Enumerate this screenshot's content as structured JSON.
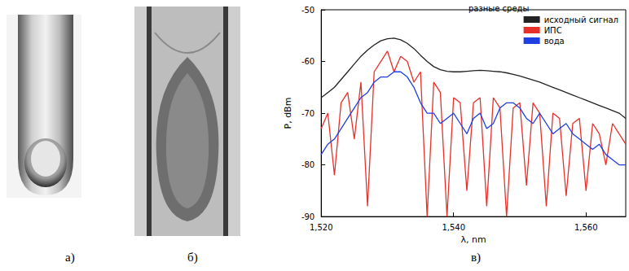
{
  "panel_labels": [
    "а)",
    "б)",
    "в)"
  ],
  "chart_data": {
    "type": "line",
    "title": "разные среды",
    "x_label": "λ, nm",
    "y_label": "P, dBm",
    "x": [
      1520,
      1521,
      1522,
      1523,
      1524,
      1525,
      1526,
      1527,
      1528,
      1529,
      1530,
      1531,
      1532,
      1533,
      1534,
      1535,
      1536,
      1537,
      1538,
      1539,
      1540,
      1541,
      1542,
      1543,
      1544,
      1545,
      1546,
      1547,
      1548,
      1549,
      1550,
      1551,
      1552,
      1553,
      1554,
      1555,
      1556,
      1557,
      1558,
      1559,
      1560,
      1561,
      1562,
      1563,
      1564,
      1565,
      1566
    ],
    "series": [
      {
        "name": "исходный сигнал",
        "color": "#222222",
        "values": [
          -67,
          -66,
          -65,
          -63.5,
          -62,
          -60.5,
          -59,
          -57.8,
          -56.8,
          -56,
          -55.6,
          -55.5,
          -55.8,
          -56.5,
          -57.5,
          -58.8,
          -60,
          -61,
          -61.6,
          -61.9,
          -62,
          -62,
          -61.9,
          -61.8,
          -61.7,
          -61.8,
          -61.9,
          -62,
          -62.2,
          -62.5,
          -62.8,
          -63.2,
          -63.6,
          -64,
          -64.5,
          -65,
          -65.5,
          -66,
          -66.5,
          -67,
          -67.5,
          -68,
          -68.5,
          -69,
          -69.5,
          -70,
          -71
        ]
      },
      {
        "name": "ИПС",
        "color": "#e8302a",
        "values": [
          -73,
          -70,
          -82,
          -68,
          -66,
          -75,
          -64,
          -88,
          -62,
          -60,
          -58,
          -62,
          -59,
          -60,
          -64,
          -62,
          -90,
          -64,
          -66,
          -90,
          -67,
          -68,
          -85,
          -68,
          -67,
          -88,
          -67,
          -69,
          -90,
          -69,
          -68,
          -84,
          -68,
          -70,
          -88,
          -70,
          -71,
          -86,
          -72,
          -71,
          -85,
          -72,
          -74,
          -80,
          -72,
          -74,
          -76
        ]
      },
      {
        "name": "вода",
        "color": "#1f3fe0",
        "values": [
          -78,
          -76,
          -75,
          -73,
          -71,
          -69,
          -67,
          -66,
          -64,
          -63,
          -63,
          -62,
          -62,
          -63,
          -65,
          -68,
          -70,
          -70,
          -72,
          -71,
          -70,
          -72,
          -74,
          -71,
          -70,
          -73,
          -72,
          -69,
          -68,
          -68,
          -69,
          -71,
          -72,
          -70,
          -72,
          -74,
          -73,
          -72,
          -74,
          -75,
          -76,
          -77,
          -76,
          -78,
          -79,
          -80,
          -80
        ]
      }
    ],
    "xlim": [
      1520,
      1566
    ],
    "xticks": [
      1520,
      1540,
      1560
    ],
    "ylim": [
      -90,
      -50
    ],
    "yticks": [
      -90,
      -80,
      -70,
      -60,
      -50
    ],
    "grid": false,
    "legend": "upper right"
  }
}
